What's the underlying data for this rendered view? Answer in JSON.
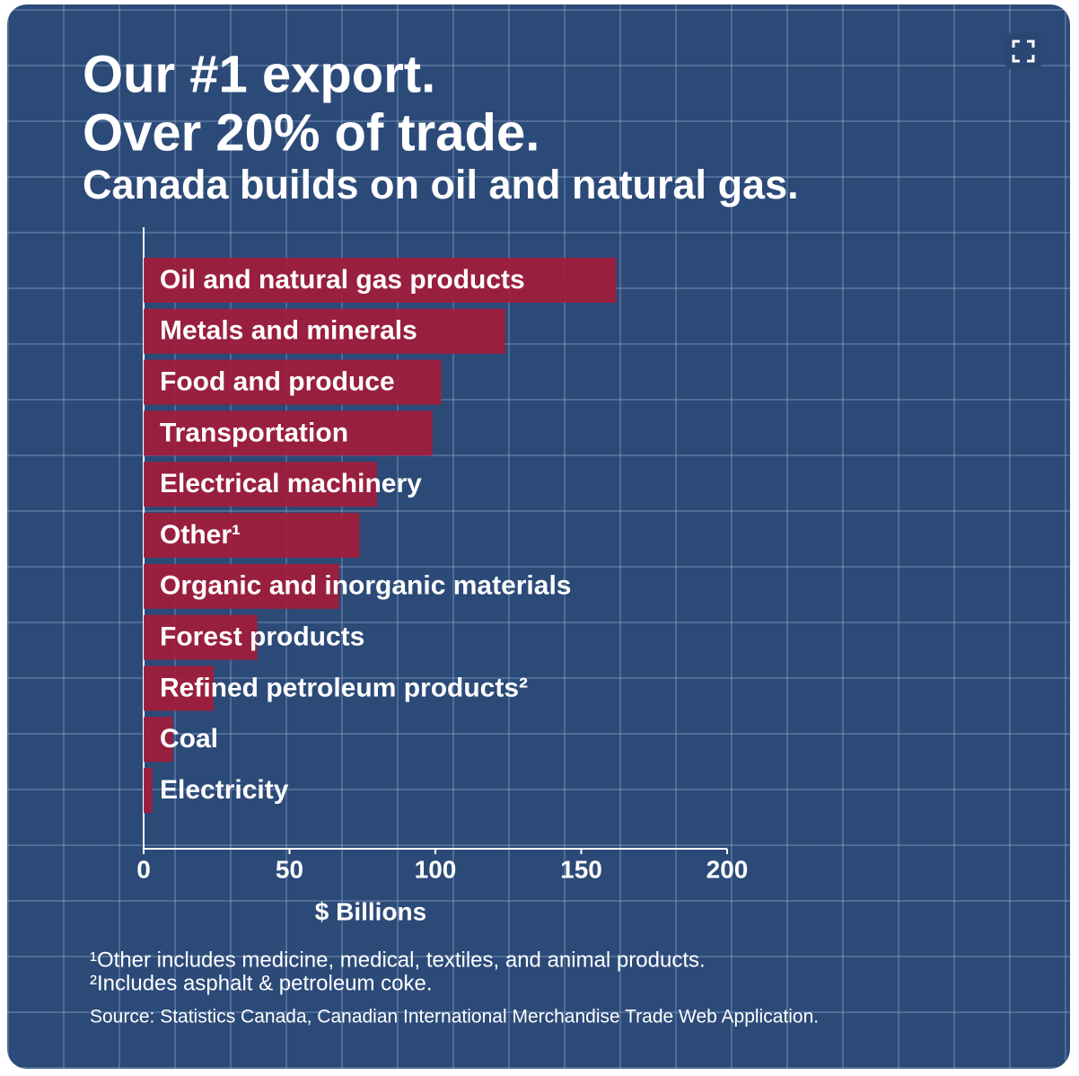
{
  "chart_data": {
    "type": "barh",
    "title": [
      "Our #1 export.",
      "Over 20% of trade."
    ],
    "subtitle": "Canada builds on oil and natural gas.",
    "categories": [
      "Oil and natural gas products",
      "Metals and minerals",
      "Food and produce",
      "Transportation",
      "Electrical machinery",
      "Other¹",
      "Organic and inorganic materials",
      "Forest products",
      "Refined petroleum products²",
      "Coal",
      "Electricity"
    ],
    "values": [
      162,
      124,
      102,
      99,
      80,
      74,
      67,
      39,
      24,
      10,
      3
    ],
    "color": "#a31b3b",
    "xlim": [
      0,
      200
    ],
    "xticks": [
      0,
      50,
      100,
      150,
      200
    ],
    "xlabel": "$ Billions",
    "footnotes": [
      "¹Other includes medicine, medical, textiles, and animal products.",
      "²Includes asphalt & petroleum coke."
    ],
    "source": "Source: Statistics Canada, Canadian International Merchandise Trade Web Application."
  }
}
